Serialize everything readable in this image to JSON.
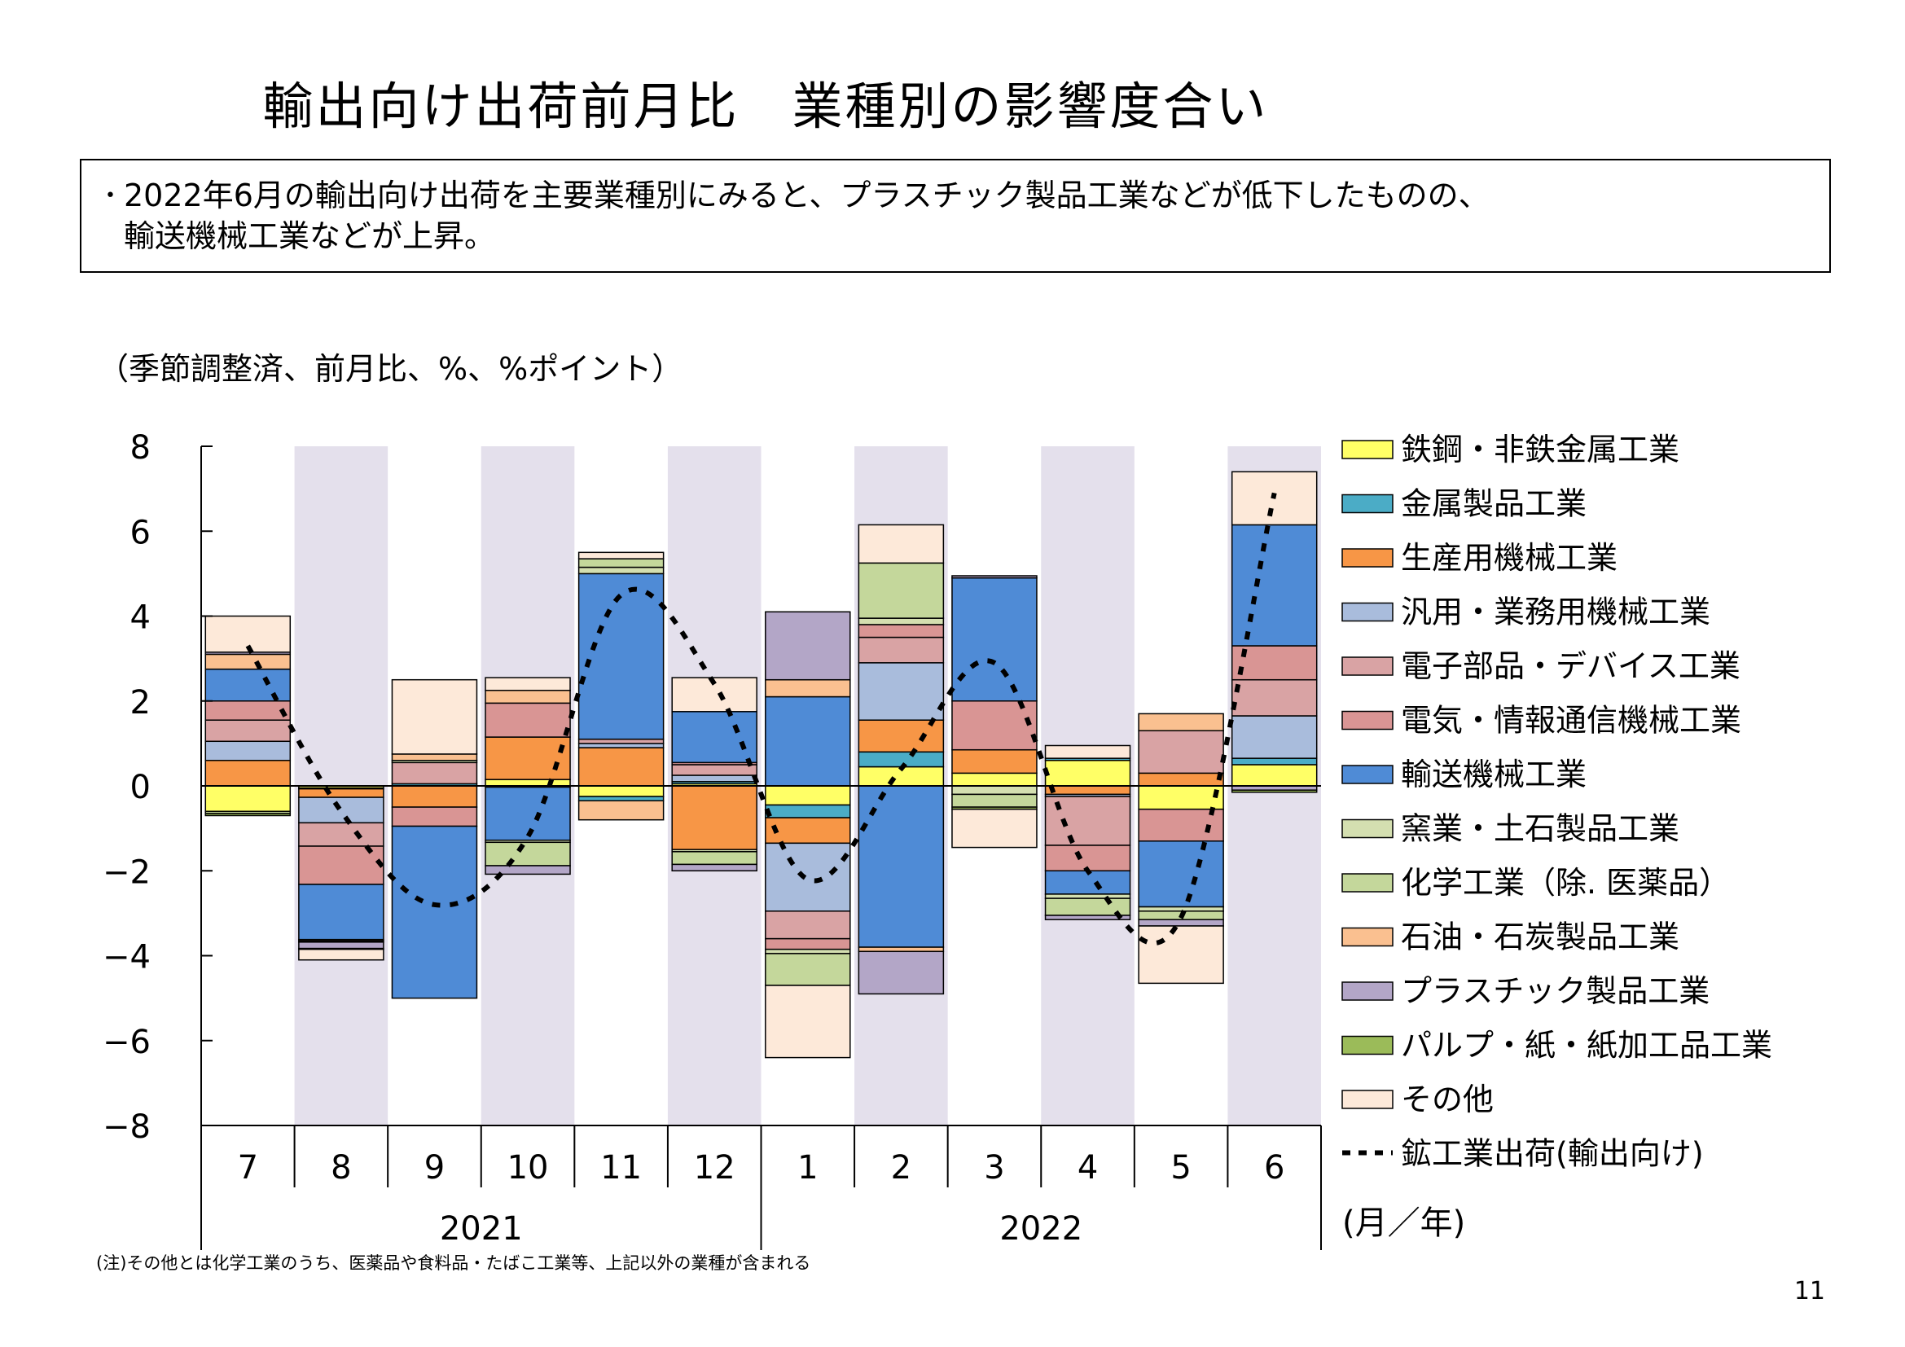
{
  "title": "輸出向け出荷前月比　業種別の影響度合い",
  "summary": {
    "bullet": "･",
    "line1": "2022年6月の輸出向け出荷を主要業種別にみると、プラスチック製品工業などが低下したものの、",
    "line2": "輸送機械工業などが上昇。"
  },
  "units_label": "（季節調整済、前月比、%、%ポイント）",
  "axis_unit_label": "(月／年)",
  "note": "(注)その他とは化学工業のうち、医薬品や食料品・たばこ工業等、上記以外の業種が含まれる",
  "page_number": "11",
  "chart_data": {
    "type": "bar",
    "stacked": true,
    "ylim": [
      -8,
      8
    ],
    "yticks": [
      8,
      6,
      4,
      2,
      0,
      -2,
      -4,
      -6,
      -8
    ],
    "ytick_labels": [
      "8",
      "6",
      "4",
      "2",
      "0",
      "−2",
      "−4",
      "−6",
      "−8"
    ],
    "categories": [
      "7",
      "8",
      "9",
      "10",
      "11",
      "12",
      "1",
      "2",
      "3",
      "4",
      "5",
      "6"
    ],
    "year_groups": [
      {
        "label": "2021",
        "start": 0,
        "end": 5
      },
      {
        "label": "2022",
        "start": 6,
        "end": 11
      }
    ],
    "shaded_months": [
      1,
      3,
      5,
      7,
      9,
      11
    ],
    "shade_color": "#e4e0ec",
    "legend_position": "right",
    "series": [
      {
        "name": "鉄鋼・非鉄金属工業",
        "color": "#ffff66",
        "values": [
          -0.6,
          -0.05,
          0.0,
          0.15,
          -0.25,
          0.05,
          -0.45,
          0.45,
          0.3,
          0.6,
          -0.55,
          0.5
        ]
      },
      {
        "name": "金属製品工業",
        "color": "#4bacc6",
        "values": [
          0.0,
          -0.02,
          0.05,
          -0.03,
          -0.1,
          0.05,
          -0.3,
          0.35,
          0.0,
          0.05,
          0.0,
          0.15
        ]
      },
      {
        "name": "生産用機械工業",
        "color": "#f79646",
        "values": [
          0.6,
          -0.2,
          -0.5,
          1.0,
          0.9,
          -1.5,
          -0.6,
          0.75,
          0.55,
          -0.2,
          0.3,
          0.0
        ]
      },
      {
        "name": "汎用・業務用機械工業",
        "color": "#a9bcdc",
        "values": [
          0.45,
          -0.6,
          0.0,
          0.0,
          0.1,
          0.15,
          -1.6,
          1.35,
          0.0,
          -0.05,
          0.0,
          1.0
        ]
      },
      {
        "name": "電子部品・デバイス工業",
        "color": "#d9a3a4",
        "values": [
          0.5,
          -0.55,
          0.5,
          0.0,
          0.1,
          0.25,
          -0.65,
          0.6,
          0.0,
          -1.15,
          1.0,
          0.85
        ]
      },
      {
        "name": "電気・情報通信機械工業",
        "color": "#d99594",
        "values": [
          0.45,
          -0.9,
          -0.45,
          0.8,
          0.0,
          0.05,
          -0.25,
          0.3,
          1.15,
          -0.6,
          -0.75,
          0.8
        ]
      },
      {
        "name": "輸送機械工業",
        "color": "#4f8bd6",
        "values": [
          0.75,
          -1.3,
          -4.05,
          -1.25,
          3.9,
          1.2,
          2.1,
          -3.8,
          2.9,
          -0.55,
          -1.55,
          2.85
        ]
      },
      {
        "name": "窯業・土石製品工業",
        "color": "#d4dfb0",
        "values": [
          0.0,
          -0.03,
          0.05,
          -0.05,
          0.15,
          -0.05,
          -0.1,
          0.15,
          -0.2,
          -0.1,
          -0.1,
          0.0
        ]
      },
      {
        "name": "化学工業（除. 医薬品）",
        "color": "#c4d79b",
        "values": [
          -0.05,
          -0.03,
          0.0,
          -0.55,
          0.2,
          -0.3,
          -0.75,
          1.3,
          -0.3,
          -0.4,
          -0.2,
          0.0
        ]
      },
      {
        "name": "石油・石炭製品工業",
        "color": "#fac090",
        "values": [
          0.35,
          0.0,
          0.15,
          0.3,
          -0.45,
          0.0,
          0.4,
          -0.1,
          0.0,
          0.0,
          0.4,
          0.0
        ]
      },
      {
        "name": "プラスチック製品工業",
        "color": "#b3a6c7",
        "values": [
          0.05,
          -0.15,
          0.0,
          -0.2,
          0.0,
          -0.15,
          1.6,
          -1.0,
          0.05,
          -0.1,
          -0.15,
          -0.1
        ]
      },
      {
        "name": "パルプ・紙・紙加工品工業",
        "color": "#9bbb59",
        "values": [
          -0.05,
          -0.02,
          0.0,
          0.0,
          0.0,
          0.0,
          0.0,
          0.0,
          -0.05,
          0.0,
          0.0,
          -0.05
        ]
      },
      {
        "name": "その他",
        "color": "#fde9d9",
        "values": [
          0.85,
          -0.25,
          1.75,
          0.3,
          0.15,
          0.8,
          -1.7,
          0.9,
          -0.9,
          0.3,
          -1.35,
          1.25
        ]
      }
    ],
    "line": {
      "name": "鉱工業出荷(輸出向け)",
      "values": [
        3.3,
        -0.6,
        -2.8,
        -1.2,
        4.5,
        2.4,
        -2.2,
        0.4,
        2.9,
        -2.0,
        -3.1,
        6.9
      ]
    }
  }
}
